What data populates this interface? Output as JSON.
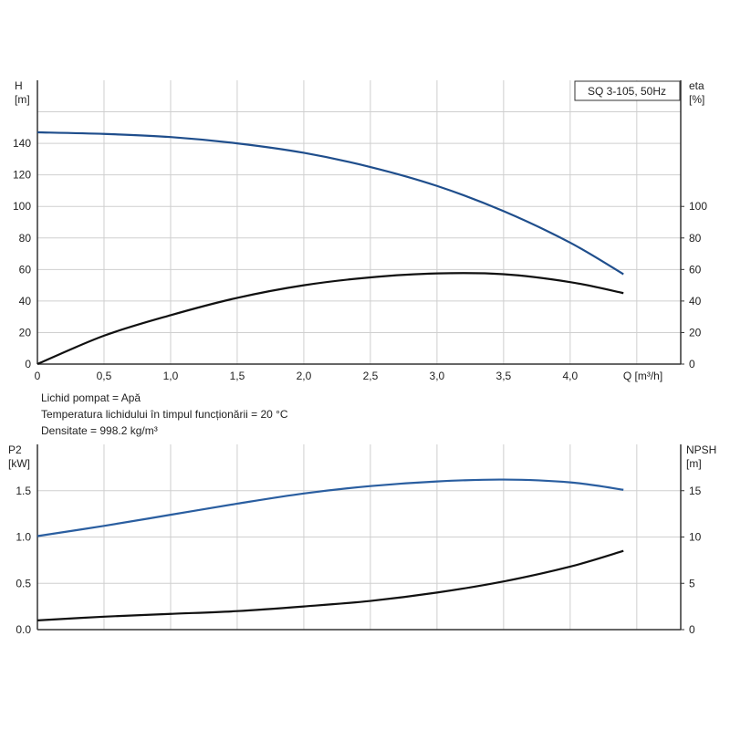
{
  "chart_data": [
    {
      "type": "line",
      "title": "SQ 3-105, 50Hz",
      "xlabel": "Q [m³/h]",
      "ylabel": [
        "H",
        "[m]"
      ],
      "y2label": [
        "eta",
        "[%]"
      ],
      "xlim": [
        0,
        4.83
      ],
      "ylim": [
        0,
        180
      ],
      "y2lim": [
        0,
        180
      ],
      "grid": true,
      "xticks": [
        0,
        0.5,
        1.0,
        1.5,
        2.0,
        2.5,
        3.0,
        3.5,
        4.0
      ],
      "xtick_labels": [
        "0",
        "0,5",
        "1,0",
        "1,5",
        "2,0",
        "2,5",
        "3,0",
        "3,5",
        "4,0"
      ],
      "yticks": [
        0,
        20,
        40,
        60,
        80,
        100,
        120,
        140
      ],
      "y2ticks": [
        0,
        20,
        40,
        60,
        80,
        100
      ],
      "x": [
        0,
        0.5,
        1.0,
        1.5,
        2.0,
        2.5,
        3.0,
        3.5,
        4.0,
        4.4
      ],
      "series": [
        {
          "name": "H",
          "axis": "left",
          "color": "#1f4e8c",
          "values": [
            147,
            146,
            144,
            140,
            134,
            125,
            113,
            97,
            77,
            57
          ]
        },
        {
          "name": "eta",
          "axis": "right",
          "color": "#111111",
          "values": [
            0,
            18,
            31,
            42,
            50,
            55,
            57.5,
            57,
            52,
            45
          ]
        }
      ]
    },
    {
      "type": "line",
      "ylabel": [
        "P2",
        "[kW]"
      ],
      "y2label": [
        "NPSH",
        "[m]"
      ],
      "xlim": [
        0,
        4.83
      ],
      "ylim": [
        0,
        2.0
      ],
      "y2lim": [
        0,
        20
      ],
      "grid": true,
      "yticks": [
        0,
        0.5,
        1.0,
        1.5
      ],
      "ytick_labels": [
        "0.0",
        "0.5",
        "1.0",
        "1.5"
      ],
      "y2ticks": [
        0,
        5,
        10,
        15
      ],
      "x": [
        0,
        0.5,
        1.0,
        1.5,
        2.0,
        2.5,
        3.0,
        3.5,
        4.0,
        4.4
      ],
      "series": [
        {
          "name": "P2",
          "axis": "left",
          "color": "#2a5ea0",
          "values": [
            1.01,
            1.12,
            1.24,
            1.36,
            1.47,
            1.55,
            1.6,
            1.62,
            1.59,
            1.51
          ]
        },
        {
          "name": "NPSH",
          "axis": "right",
          "color": "#111111",
          "values": [
            1.0,
            1.4,
            1.7,
            2.0,
            2.5,
            3.1,
            4.0,
            5.2,
            6.8,
            8.5
          ]
        }
      ]
    }
  ],
  "info": {
    "liquid": "Lichid pompat = Apă",
    "temperature": "Temperatura lichidului în timpul funcționării = 20 °C",
    "density": "Densitate = 998.2 kg/m³"
  }
}
